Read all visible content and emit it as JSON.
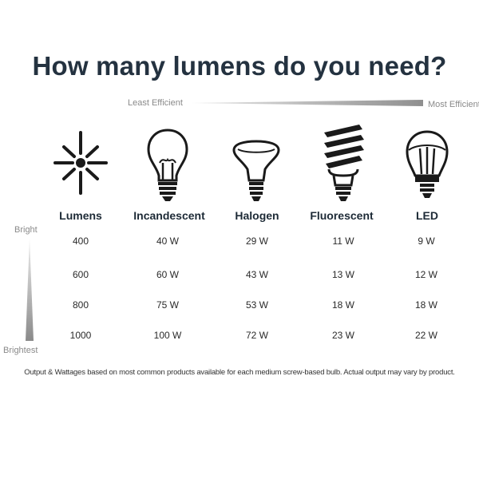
{
  "title": "How many lumens do you need?",
  "efficiency": {
    "left_label": "Least Efficient",
    "right_label": "Most Efficient"
  },
  "brightness": {
    "top_label": "Bright",
    "bottom_label": "Brightest"
  },
  "columns": [
    {
      "header": "Lumens",
      "icon": "sun-icon"
    },
    {
      "header": "Incandescent",
      "icon": "incandescent-bulb-icon"
    },
    {
      "header": "Halogen",
      "icon": "halogen-bulb-icon"
    },
    {
      "header": "Fluorescent",
      "icon": "fluorescent-bulb-icon"
    },
    {
      "header": "LED",
      "icon": "led-bulb-icon"
    }
  ],
  "rows": [
    [
      "400",
      "40 W",
      "29 W",
      "11 W",
      "9 W"
    ],
    [
      "600",
      "60 W",
      "43 W",
      "13 W",
      "12 W"
    ],
    [
      "800",
      "75 W",
      "53 W",
      "18 W",
      "18 W"
    ],
    [
      "1000",
      "100 W",
      "72 W",
      "23 W",
      "22 W"
    ]
  ],
  "footnote": "Output & Wattages based on most common products available for each medium screw-based bulb. Actual output may vary by product.",
  "colors": {
    "title": "#243240",
    "icon": "#1a1a1a",
    "gradient": "#9a9a9a"
  }
}
